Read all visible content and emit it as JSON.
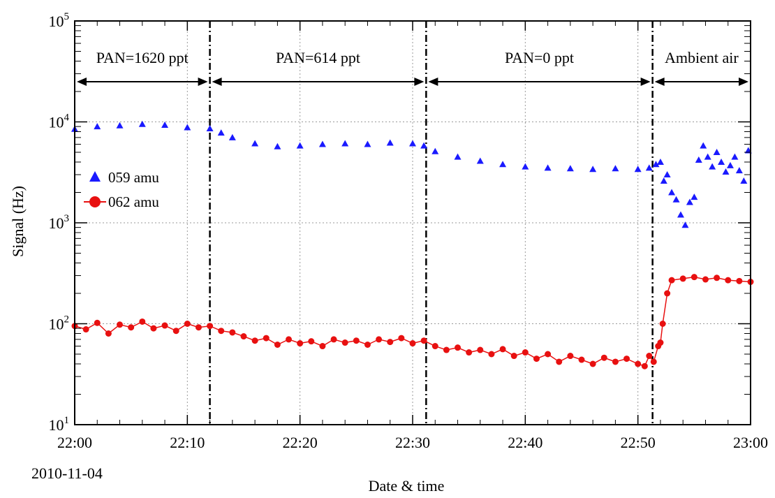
{
  "chart_data": {
    "type": "scatter",
    "xlabel": "Date & time",
    "ylabel": "Signal (Hz)",
    "date_label": "2010-11-04",
    "x_range_minutes": [
      0,
      60
    ],
    "x_ticks": [
      {
        "minute": 0,
        "label": "22:00"
      },
      {
        "minute": 10,
        "label": "22:10"
      },
      {
        "minute": 20,
        "label": "22:20"
      },
      {
        "minute": 30,
        "label": "22:30"
      },
      {
        "minute": 40,
        "label": "22:40"
      },
      {
        "minute": 50,
        "label": "22:50"
      },
      {
        "minute": 60,
        "label": "23:00"
      }
    ],
    "y_scale": "log",
    "ylim": [
      10,
      100000
    ],
    "y_ticks": [
      {
        "value": 10,
        "base": "10",
        "exp": "1"
      },
      {
        "value": 100,
        "base": "10",
        "exp": "2"
      },
      {
        "value": 1000,
        "base": "10",
        "exp": "3"
      },
      {
        "value": 10000,
        "base": "10",
        "exp": "4"
      },
      {
        "value": 100000,
        "base": "10",
        "exp": "5"
      }
    ],
    "grid": true,
    "legend_position": "left",
    "dividers_minutes": [
      12,
      31.2,
      51.3
    ],
    "annotations": [
      {
        "label": "PAN=1620 ppt",
        "start_minute": 0,
        "end_minute": 12
      },
      {
        "label": "PAN=614 ppt",
        "start_minute": 12,
        "end_minute": 31.2
      },
      {
        "label": "PAN=0 ppt",
        "start_minute": 31.2,
        "end_minute": 51.3
      },
      {
        "label": "Ambient air",
        "start_minute": 51.3,
        "end_minute": 60
      }
    ],
    "series": [
      {
        "name": "059 amu",
        "color": "#1a1aff",
        "marker": "triangle",
        "x": [
          0,
          2,
          4,
          6,
          8,
          10,
          12,
          13,
          14,
          16,
          18,
          20,
          22,
          24,
          26,
          28,
          30,
          31,
          32,
          34,
          36,
          38,
          40,
          42,
          44,
          46,
          48,
          50,
          51,
          51.6,
          52,
          52.3,
          52.6,
          53,
          53.4,
          53.8,
          54.2,
          54.6,
          55,
          55.4,
          55.8,
          56.2,
          56.6,
          57,
          57.4,
          57.8,
          58.2,
          58.6,
          59,
          59.4,
          59.8
        ],
        "y": [
          8500,
          9000,
          9200,
          9500,
          9300,
          8800,
          8600,
          7800,
          7000,
          6100,
          5700,
          5800,
          6000,
          6100,
          6000,
          6200,
          6100,
          5800,
          5100,
          4500,
          4100,
          3800,
          3600,
          3500,
          3450,
          3400,
          3450,
          3400,
          3500,
          3800,
          4000,
          2600,
          3000,
          2000,
          1700,
          1200,
          950,
          1600,
          1800,
          4200,
          5800,
          4500,
          3600,
          5000,
          4000,
          3200,
          3700,
          4500,
          3300,
          2600,
          5200
        ]
      },
      {
        "name": "062 amu",
        "color": "#e81010",
        "marker": "circle",
        "x": [
          0,
          1,
          2,
          3,
          4,
          5,
          6,
          7,
          8,
          9,
          10,
          11,
          12,
          13,
          14,
          15,
          16,
          17,
          18,
          19,
          20,
          21,
          22,
          23,
          24,
          25,
          26,
          27,
          28,
          29,
          30,
          31,
          32,
          33,
          34,
          35,
          36,
          37,
          38,
          39,
          40,
          41,
          42,
          43,
          44,
          45,
          46,
          47,
          48,
          49,
          50,
          50.6,
          51,
          51.4,
          51.8,
          52,
          52.2,
          52.6,
          53,
          54,
          55,
          56,
          57,
          58,
          59,
          60
        ],
        "y": [
          95,
          88,
          102,
          80,
          98,
          92,
          105,
          90,
          96,
          85,
          100,
          92,
          95,
          85,
          82,
          75,
          68,
          72,
          62,
          70,
          64,
          67,
          60,
          70,
          65,
          68,
          62,
          70,
          66,
          72,
          64,
          68,
          60,
          55,
          58,
          52,
          55,
          50,
          56,
          48,
          52,
          45,
          50,
          42,
          48,
          44,
          40,
          46,
          42,
          45,
          40,
          38,
          48,
          42,
          60,
          65,
          100,
          200,
          270,
          280,
          290,
          275,
          285,
          270,
          265,
          260
        ]
      }
    ]
  }
}
